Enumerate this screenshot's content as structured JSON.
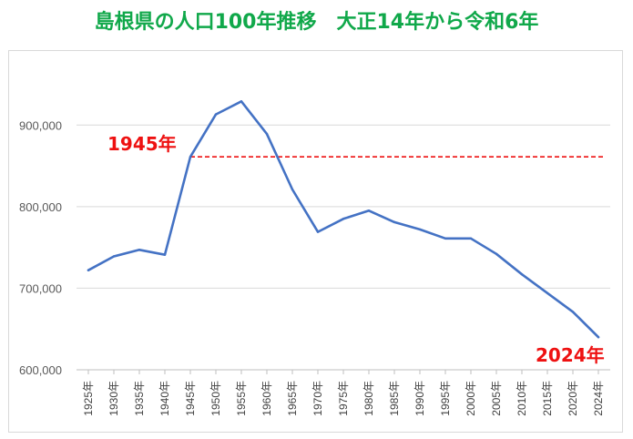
{
  "chart_data": {
    "type": "line",
    "title": "島根県の人口100年推移　大正14年から令和6年",
    "x": [
      "1925年",
      "1930年",
      "1935年",
      "1940年",
      "1945年",
      "1950年",
      "1955年",
      "1960年",
      "1965年",
      "1970年",
      "1975年",
      "1980年",
      "1985年",
      "1990年",
      "1995年",
      "2000年",
      "2005年",
      "2010年",
      "2015年",
      "2020年",
      "2024年"
    ],
    "series": [
      {
        "values": [
          722000,
          739000,
          747000,
          741000,
          861000,
          913000,
          929000,
          889000,
          821000,
          769000,
          785000,
          795000,
          781000,
          772000,
          761000,
          761000,
          742000,
          717000,
          694000,
          671000,
          640000
        ],
        "color": "#4472c4"
      }
    ],
    "yticks": [
      "600,000",
      "700,000",
      "800,000",
      "900,000"
    ],
    "ylim": [
      600000,
      955000
    ],
    "grid": true,
    "legend": "none",
    "reference_line": {
      "value": 861000,
      "color": "#ee1111",
      "style": "dashed"
    },
    "annotations": [
      {
        "text": "1945年",
        "color": "#ee1111"
      },
      {
        "text": "2024年",
        "color": "#ee1111"
      }
    ]
  }
}
